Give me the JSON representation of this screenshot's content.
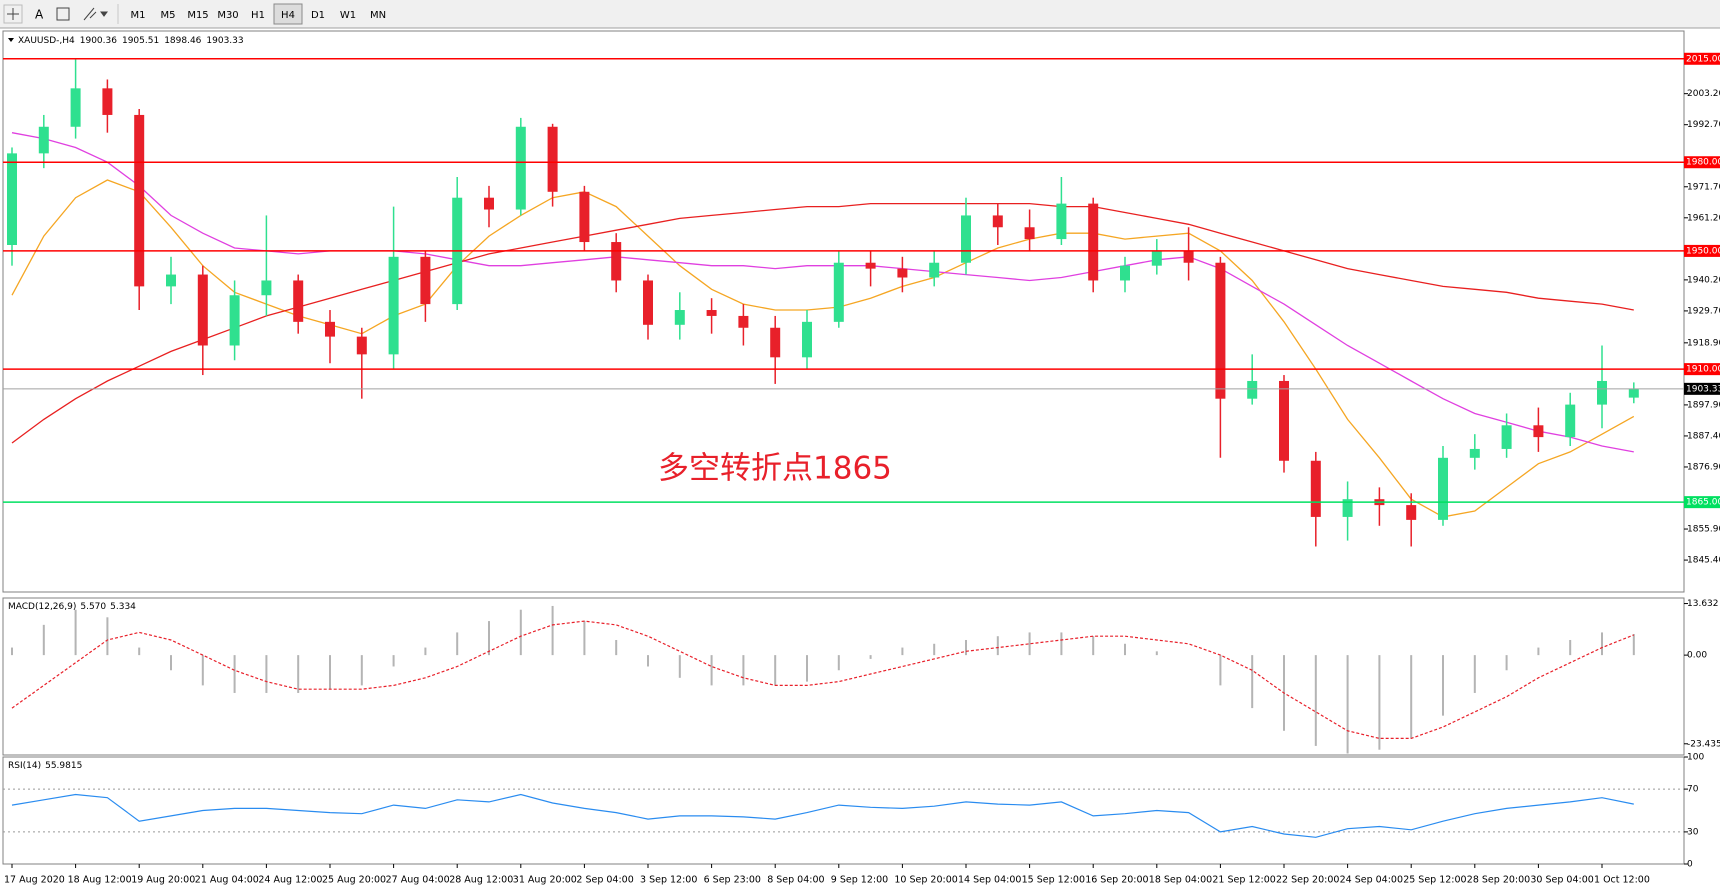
{
  "toolbar": {
    "timeframes": [
      "M1",
      "M5",
      "M15",
      "M30",
      "H1",
      "H4",
      "D1",
      "W1",
      "MN"
    ],
    "active": "H4"
  },
  "chart_data": [
    {
      "type": "candlestick",
      "title": "XAUUSD-,H4",
      "categories": [
        "17 Aug 2020",
        null,
        "18 Aug 12:00",
        null,
        "19 Aug 20:00",
        null,
        "21 Aug 04:00",
        null,
        "24 Aug 12:00",
        null,
        "25 Aug 20:00",
        null,
        "27 Aug 04:00",
        null,
        "28 Aug 12:00",
        null,
        "31 Aug 20:00",
        null,
        "2 Sep 04:00",
        null,
        "3 Sep 12:00",
        null,
        "6 Sep 23:00",
        null,
        "8 Sep 04:00",
        null,
        "9 Sep 12:00",
        null,
        "10 Sep 20:00",
        null,
        "14 Sep 04:00",
        null,
        "15 Sep 12:00",
        null,
        "16 Sep 20:00",
        null,
        "18 Sep 04:00",
        null,
        "21 Sep 12:00",
        null,
        "22 Sep 20:00",
        null,
        "24 Sep 04:00",
        null,
        "25 Sep 12:00",
        null,
        "28 Sep 20:00",
        null,
        "30 Sep 04:00",
        null,
        "1 Oct 12:00",
        null
      ],
      "open": [
        1952,
        1983,
        1992,
        2005,
        1996,
        1938,
        1942,
        1918,
        1935,
        1940,
        1926,
        1921,
        1915,
        1948,
        1932,
        1968,
        1964,
        1992,
        1970,
        1953,
        1940,
        1925,
        1930,
        1928,
        1924,
        1914,
        1926,
        1946,
        1944,
        1941,
        1946,
        1962,
        1958,
        1954,
        1966,
        1940,
        1945,
        1950,
        1946,
        1900,
        1906,
        1879,
        1860,
        1866,
        1864,
        1859,
        1880,
        1883,
        1891,
        1887,
        1898,
        1900.36
      ],
      "high": [
        1985,
        1996,
        2015,
        2008,
        1998,
        1948,
        1945,
        1940,
        1962,
        1942,
        1930,
        1924,
        1965,
        1950,
        1975,
        1972,
        1995,
        1993,
        1972,
        1956,
        1942,
        1936,
        1934,
        1932,
        1928,
        1930,
        1950,
        1950,
        1948,
        1950,
        1968,
        1966,
        1964,
        1975,
        1968,
        1948,
        1954,
        1958,
        1948,
        1915,
        1908,
        1882,
        1872,
        1870,
        1868,
        1884,
        1888,
        1895,
        1897,
        1902,
        1918,
        1905.51
      ],
      "low": [
        1945,
        1978,
        1988,
        1990,
        1930,
        1932,
        1908,
        1913,
        1928,
        1922,
        1912,
        1900,
        1910,
        1926,
        1930,
        1958,
        1962,
        1965,
        1950,
        1936,
        1920,
        1920,
        1922,
        1918,
        1905,
        1910,
        1924,
        1938,
        1936,
        1938,
        1942,
        1952,
        1950,
        1952,
        1936,
        1936,
        1942,
        1940,
        1880,
        1898,
        1875,
        1850,
        1852,
        1857,
        1850,
        1857,
        1876,
        1880,
        1882,
        1884,
        1890,
        1898.46
      ],
      "close": [
        1983,
        1992,
        2005,
        1996,
        1938,
        1942,
        1918,
        1935,
        1940,
        1926,
        1921,
        1915,
        1948,
        1932,
        1968,
        1964,
        1992,
        1970,
        1953,
        1940,
        1925,
        1930,
        1928,
        1924,
        1914,
        1926,
        1946,
        1944,
        1941,
        1946,
        1962,
        1958,
        1954,
        1966,
        1940,
        1945,
        1950,
        1946,
        1900,
        1906,
        1879,
        1860,
        1866,
        1864,
        1859,
        1880,
        1883,
        1891,
        1887,
        1898,
        1906,
        1903.33
      ],
      "up_color": "#2fe08f",
      "down_color": "#e8202a",
      "series": [
        {
          "color": "#f5a623",
          "values": [
            1935,
            1955,
            1968,
            1974,
            1970,
            1958,
            1945,
            1936,
            1932,
            1928,
            1925,
            1922,
            1928,
            1932,
            1945,
            1955,
            1962,
            1968,
            1970,
            1965,
            1955,
            1945,
            1937,
            1932,
            1930,
            1930,
            1931,
            1934,
            1938,
            1941,
            1946,
            1951,
            1954,
            1956,
            1956,
            1954,
            1955,
            1956,
            1950,
            1940,
            1926,
            1910,
            1893,
            1880,
            1866,
            1860,
            1862,
            1870,
            1878,
            1882,
            1888,
            1894
          ]
        },
        {
          "color": "#e040e0",
          "values": [
            1990,
            1988,
            1985,
            1980,
            1972,
            1962,
            1956,
            1951,
            1950,
            1949,
            1950,
            1950,
            1950,
            1949,
            1947,
            1945,
            1945,
            1946,
            1947,
            1948,
            1947,
            1946,
            1945,
            1945,
            1944,
            1945,
            1945,
            1945,
            1944,
            1943,
            1942,
            1941,
            1940,
            1941,
            1943,
            1945,
            1947,
            1948,
            1944,
            1938,
            1932,
            1925,
            1918,
            1912,
            1906,
            1900,
            1895,
            1892,
            1889,
            1887,
            1884,
            1882
          ]
        },
        {
          "color": "#e82020",
          "values": [
            1885,
            1893,
            1900,
            1906,
            1911,
            1916,
            1920,
            1924,
            1928,
            1931,
            1934,
            1937,
            1940,
            1943,
            1946,
            1949,
            1951,
            1953,
            1955,
            1957,
            1959,
            1961,
            1962,
            1963,
            1964,
            1965,
            1965,
            1966,
            1966,
            1966,
            1966,
            1966,
            1966,
            1965,
            1965,
            1963,
            1961,
            1959,
            1956,
            1953,
            1950,
            1947,
            1944,
            1942,
            1940,
            1938,
            1937,
            1936,
            1934,
            1933,
            1932,
            1930
          ]
        }
      ],
      "levels": [
        {
          "value": 2015,
          "label": "2015.00",
          "color": "#ff0000"
        },
        {
          "value": 1980,
          "label": "1980.00",
          "color": "#ff0000"
        },
        {
          "value": 1950,
          "label": "1950.00",
          "color": "#ff0000"
        },
        {
          "value": 1910,
          "label": "1910.00",
          "color": "#ff0000"
        },
        {
          "value": 1865,
          "label": "1865.00",
          "color": "#00e060"
        }
      ],
      "annotation": {
        "text": "多空转折点1865",
        "color": "#e8202a"
      },
      "ylim": [
        1834.6,
        2024.4
      ],
      "yticks": [
        {
          "value": 2003.2,
          "label": "2003.20"
        },
        {
          "value": 1992.7,
          "label": "1992.70"
        },
        {
          "value": 1971.7,
          "label": "1971.70"
        },
        {
          "value": 1961.2,
          "label": "1961.20"
        },
        {
          "value": 1940.2,
          "label": "1940.20"
        },
        {
          "value": 1929.7,
          "label": "1929.70"
        },
        {
          "value": 1918.9,
          "label": "1918.90"
        },
        {
          "value": 1897.9,
          "label": "1897.90"
        },
        {
          "value": 1887.4,
          "label": "1887.40"
        },
        {
          "value": 1876.9,
          "label": "1876.90"
        },
        {
          "value": 1855.9,
          "label": "1855.90"
        },
        {
          "value": 1845.4,
          "label": "1845.40"
        }
      ]
    },
    {
      "type": "macd",
      "title": "MACD(12,26,9)",
      "readout": [
        {
          "value": 5.57,
          "label": "5.570"
        },
        5.334
      ],
      "histogram": {
        "color": "#b4b4b4",
        "values": [
          2,
          8,
          12,
          10,
          2,
          -4,
          -8,
          -10,
          -10,
          -10,
          -9,
          -8,
          -3,
          2,
          6,
          9,
          12,
          13,
          9,
          4,
          -3,
          -6,
          -8,
          -8,
          -8,
          -7,
          -4,
          -1,
          2,
          3,
          4,
          5,
          6,
          6,
          5,
          3,
          1,
          0,
          -8,
          -14,
          -20,
          -24,
          -26,
          -25,
          -22,
          -16,
          -10,
          -4,
          2,
          4,
          6,
          5.57
        ]
      },
      "signal": {
        "color": "#e8202a",
        "values": [
          -14,
          -8,
          -2,
          4,
          6,
          4,
          0,
          -4,
          -7,
          -9,
          -9,
          -9,
          -8,
          -6,
          -3,
          1,
          5,
          8,
          9,
          8,
          5,
          1,
          -3,
          -6,
          -8,
          -8,
          -7,
          -5,
          -3,
          -1,
          1,
          2,
          3,
          4,
          5,
          5,
          4,
          3,
          0,
          -4,
          -10,
          -15,
          -20,
          -22,
          -22,
          -19,
          -15,
          -11,
          -6,
          -2,
          2,
          5.334
        ]
      },
      "ylim": [
        -26.4,
        15.1
      ],
      "yticks": [
        13.632,
        {
          "value": 0,
          "label": "0.00"
        },
        -23.435
      ]
    },
    {
      "type": "line",
      "title": "RSI(14)",
      "series": [
        {
          "color": "#2a8cf0",
          "values": [
            55,
            60,
            65,
            62,
            40,
            45,
            50,
            52,
            52,
            50,
            48,
            47,
            55,
            52,
            60,
            58,
            65,
            57,
            52,
            48,
            42,
            45,
            45,
            44,
            42,
            48,
            55,
            53,
            52,
            54,
            58,
            56,
            55,
            58,
            45,
            47,
            50,
            48,
            30,
            35,
            28,
            25,
            33,
            35,
            32,
            40,
            47,
            52,
            55,
            58,
            62,
            55.9815
          ]
        }
      ],
      "grid_levels": [
        70,
        30
      ],
      "ylim": [
        0,
        100
      ],
      "yticks": [
        100,
        70,
        30,
        0
      ]
    }
  ]
}
